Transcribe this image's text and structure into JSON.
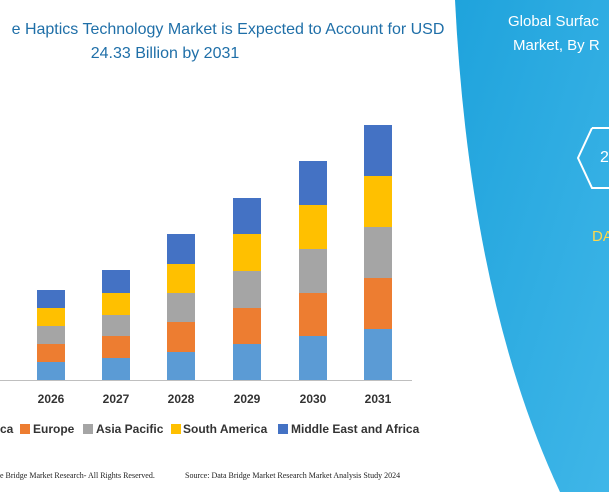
{
  "chart_data": {
    "type": "bar",
    "stacked": true,
    "title": [
      "e Haptics Technology Market is Expected to Account for USD",
      "24.33 Billion by 2031"
    ],
    "categories": [
      "2026",
      "2027",
      "2028",
      "2029",
      "2030",
      "2031"
    ],
    "series": [
      {
        "name": "ca",
        "color": "#5b9bd5",
        "values": [
          18,
          22,
          28,
          36,
          44,
          51
        ]
      },
      {
        "name": "Europe",
        "color": "#ed7d31",
        "values": [
          18,
          22,
          30,
          36,
          43,
          51
        ]
      },
      {
        "name": "Asia Pacific",
        "color": "#a5a5a5",
        "values": [
          18,
          21,
          29,
          37,
          44,
          51
        ]
      },
      {
        "name": "South America",
        "color": "#ffc000",
        "values": [
          18,
          22,
          29,
          37,
          44,
          51
        ]
      },
      {
        "name": "Middle East and Africa",
        "color": "#4472c4",
        "values": [
          18,
          23,
          30,
          36,
          44,
          51
        ]
      }
    ],
    "ylim": [
      0,
      270
    ]
  },
  "side_panel": {
    "lines": [
      "Global Surfac",
      "Market, By R"
    ],
    "badge": "2",
    "brand": "DA"
  },
  "footer": {
    "left": "e Bridge Market Research- All Rights Reserved.",
    "right": "Source: Data Bridge Market Research  Market Analysis Study 2024"
  }
}
